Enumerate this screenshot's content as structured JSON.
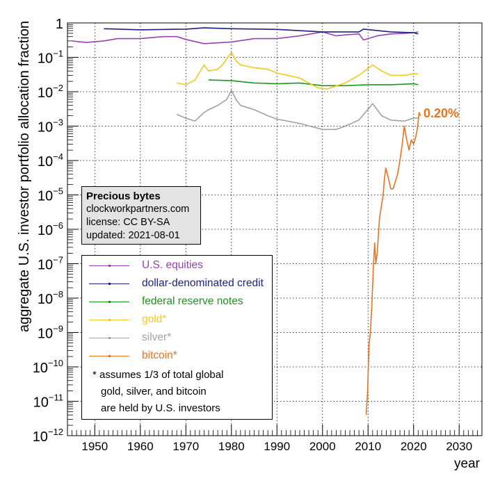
{
  "chart_data": {
    "type": "line",
    "xlabel": "year",
    "ylabel": "aggregate U.S. investor portfolio allocation fraction",
    "xlim": [
      1944,
      2035
    ],
    "ylim_exponent": [
      -12,
      0
    ],
    "yscale": "log",
    "grid": true,
    "x_ticks": [
      "1950",
      "1960",
      "1970",
      "1980",
      "1990",
      "2000",
      "2010",
      "2020",
      "2030"
    ],
    "y_ticks": [
      {
        "exp": 0,
        "label": "1"
      },
      {
        "exp": -1,
        "label": "10",
        "sup": "−1"
      },
      {
        "exp": -2,
        "label": "10",
        "sup": "−2"
      },
      {
        "exp": -3,
        "label": "10",
        "sup": "−3"
      },
      {
        "exp": -4,
        "label": "10",
        "sup": "−4"
      },
      {
        "exp": -5,
        "label": "10",
        "sup": "−5"
      },
      {
        "exp": -6,
        "label": "10",
        "sup": "−6"
      },
      {
        "exp": -7,
        "label": "10",
        "sup": "−7"
      },
      {
        "exp": -8,
        "label": "10",
        "sup": "−8"
      },
      {
        "exp": -9,
        "label": "10",
        "sup": "−9"
      },
      {
        "exp": -10,
        "label": "10",
        "sup": "−10"
      },
      {
        "exp": -11,
        "label": "10",
        "sup": "−11"
      },
      {
        "exp": -12,
        "label": "10",
        "sup": "−12"
      }
    ],
    "series": [
      {
        "name": "U.S. equities",
        "color": "#9640b4",
        "x": [
          1945,
          1948,
          1952,
          1955,
          1960,
          1965,
          1968,
          1970,
          1974,
          1980,
          1985,
          1990,
          1995,
          2000,
          2003,
          2005,
          2008,
          2009,
          2012,
          2015,
          2018,
          2020,
          2021
        ],
        "y": [
          0.3,
          0.27,
          0.3,
          0.35,
          0.35,
          0.4,
          0.4,
          0.33,
          0.25,
          0.28,
          0.35,
          0.35,
          0.42,
          0.55,
          0.42,
          0.45,
          0.48,
          0.32,
          0.42,
          0.48,
          0.5,
          0.52,
          0.55
        ]
      },
      {
        "name": "dollar-denominated credit",
        "color": "#1e2080",
        "x": [
          1952,
          1960,
          1970,
          1974,
          1980,
          1990,
          2000,
          2008,
          2009,
          2015,
          2020,
          2021
        ],
        "y": [
          0.68,
          0.63,
          0.66,
          0.72,
          0.68,
          0.65,
          0.55,
          0.55,
          0.66,
          0.55,
          0.52,
          0.48
        ]
      },
      {
        "name": "federal reserve notes",
        "color": "#1a961a",
        "x": [
          1975,
          1980,
          1985,
          1990,
          1995,
          2000,
          2005,
          2010,
          2015,
          2020,
          2021
        ],
        "y": [
          0.022,
          0.021,
          0.018,
          0.017,
          0.018,
          0.015,
          0.015,
          0.016,
          0.016,
          0.017,
          0.016
        ]
      },
      {
        "name": "gold*",
        "color": "#f0c81e",
        "x": [
          1968,
          1970,
          1972,
          1974,
          1975,
          1977,
          1978,
          1980,
          1981,
          1982,
          1985,
          1988,
          1990,
          1995,
          1999,
          2001,
          2005,
          2008,
          2011,
          2013,
          2015,
          2018,
          2020,
          2021
        ],
        "y": [
          0.018,
          0.016,
          0.022,
          0.06,
          0.04,
          0.045,
          0.06,
          0.14,
          0.08,
          0.06,
          0.05,
          0.045,
          0.035,
          0.025,
          0.013,
          0.012,
          0.018,
          0.03,
          0.06,
          0.04,
          0.03,
          0.03,
          0.033,
          0.033
        ]
      },
      {
        "name": "silver*",
        "color": "#a0a0a0",
        "x": [
          1968,
          1970,
          1972,
          1974,
          1975,
          1977,
          1979,
          1980,
          1981,
          1982,
          1985,
          1988,
          1990,
          1995,
          2000,
          2003,
          2005,
          2008,
          2011,
          2013,
          2015,
          2018,
          2020,
          2021
        ],
        "y": [
          0.0022,
          0.0017,
          0.0014,
          0.0025,
          0.003,
          0.004,
          0.006,
          0.011,
          0.006,
          0.004,
          0.003,
          0.002,
          0.0016,
          0.0012,
          0.0008,
          0.0008,
          0.001,
          0.0015,
          0.0045,
          0.002,
          0.0015,
          0.0014,
          0.0017,
          0.0017
        ]
      },
      {
        "name": "bitcoin*",
        "color": "#e8731e",
        "x": [
          2009.6,
          2009.9,
          2010.2,
          2010.5,
          2010.8,
          2011.2,
          2011.45,
          2011.7,
          2012.0,
          2012.5,
          2013.3,
          2013.6,
          2013.9,
          2014.5,
          2015.0,
          2015.5,
          2016.5,
          2017.0,
          2017.5,
          2017.95,
          2018.5,
          2019.0,
          2019.5,
          2020.0,
          2020.5,
          2020.9,
          2021.2,
          2021.5
        ],
        "y": [
          4e-12,
          2e-11,
          4e-10,
          1e-09,
          5e-09,
          1e-07,
          4e-07,
          1e-07,
          2e-07,
          2e-06,
          1e-05,
          3e-05,
          6e-05,
          3e-05,
          1.5e-05,
          1.5e-05,
          4e-05,
          0.0001,
          0.0003,
          0.001,
          0.0004,
          0.0002,
          0.0004,
          0.0003,
          0.0005,
          0.001,
          0.0025,
          0.002
        ]
      }
    ],
    "last_value_label": "0.20%",
    "infobox": {
      "title": "Precious bytes",
      "lines": [
        "clockworkpartners.com",
        "license: CC BY-SA",
        "updated: 2021-08-01"
      ]
    },
    "legend_note": [
      "* assumes 1/3 of total global",
      "gold, silver, and bitcoin",
      "are held by U.S. investors"
    ],
    "legend_placement": "left-middle"
  }
}
